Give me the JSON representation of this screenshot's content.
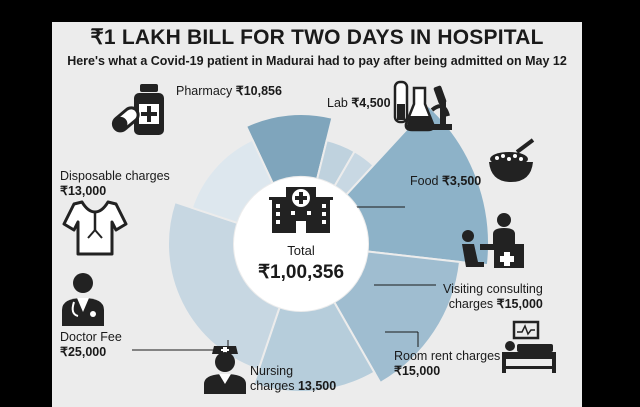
{
  "title": "₹1 LAKH BILL FOR TWO DAYS IN HOSPITAL",
  "subtitle": "Here's what a Covid-19 patient in Madurai had to pay after being admitted on May 12",
  "total": {
    "label": "Total",
    "value": "₹1,00,356"
  },
  "labels": {
    "pharmacy": {
      "name": "Pharmacy",
      "amount": "₹10,856"
    },
    "lab": {
      "name": "Lab",
      "amount": "₹4,500"
    },
    "food": {
      "name": "Food",
      "amount": "₹3,500"
    },
    "visiting": {
      "line1": "Visiting consulting",
      "line2a": "charges",
      "amount": "₹15,000"
    },
    "room": {
      "line1": "Room rent charges",
      "amount": "₹15,000"
    },
    "nursing": {
      "line1": "Nursing",
      "line2a": "charges",
      "amount": "13,500"
    },
    "doctor": {
      "line1": "Doctor Fee",
      "amount": "₹25,000"
    },
    "disposable": {
      "line1": "Disposable charges",
      "amount": "₹13,000"
    }
  },
  "chart_data": {
    "type": "pie",
    "title": "₹1 LAKH BILL FOR TWO DAYS IN HOSPITAL",
    "subtitle": "Here's what a Covid-19 patient in Madurai had to pay after being admitted on May 12",
    "total": 100356,
    "unit": "₹",
    "slices": [
      {
        "name": "Pharmacy",
        "value": 10856,
        "color": "#7fa5bc"
      },
      {
        "name": "Lab",
        "value": 4500,
        "color": "#bfd2de"
      },
      {
        "name": "Food",
        "value": 3500,
        "color": "#c8d8e3"
      },
      {
        "name": "Visiting consulting charges",
        "value": 15000,
        "color": "#8db2c8"
      },
      {
        "name": "Room rent charges",
        "value": 15000,
        "color": "#9fbdd0"
      },
      {
        "name": "Nursing charges",
        "value": 13500,
        "color": "#b6cddb"
      },
      {
        "name": "Doctor Fee",
        "value": 25000,
        "color": "#c7d7e2"
      },
      {
        "name": "Disposable charges",
        "value": 13000,
        "color": "#dde7ee"
      }
    ]
  },
  "colors": {
    "text": "#1a1a1a",
    "background": "#ececec",
    "accent": "#7fa5bc"
  }
}
